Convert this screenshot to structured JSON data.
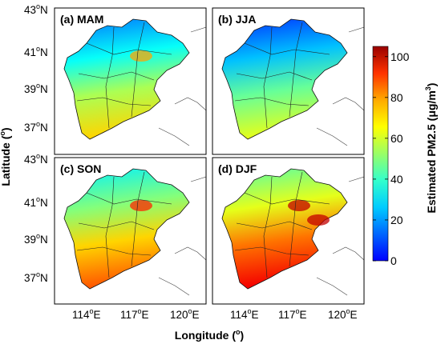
{
  "axes": {
    "x_label": "Longitude",
    "x_label_unit": "o",
    "y_label": "Latitude",
    "y_label_unit": "o",
    "x_ticks": [
      {
        "value": "114",
        "deg": "o",
        "hemi": "E"
      },
      {
        "value": "117",
        "deg": "o",
        "hemi": "E"
      },
      {
        "value": "120",
        "deg": "o",
        "hemi": "E"
      }
    ],
    "y_ticks": [
      {
        "value": "43",
        "deg": "o",
        "hemi": "N"
      },
      {
        "value": "41",
        "deg": "o",
        "hemi": "N"
      },
      {
        "value": "39",
        "deg": "o",
        "hemi": "N"
      },
      {
        "value": "37",
        "deg": "o",
        "hemi": "N"
      }
    ]
  },
  "panels": [
    {
      "label": "(a) MAM",
      "season": "MAM",
      "mean_level": 45,
      "high_spots": 1
    },
    {
      "label": "(b) JJA",
      "season": "JJA",
      "mean_level": 38,
      "high_spots": 0
    },
    {
      "label": "(c) SON",
      "season": "SON",
      "mean_level": 58,
      "high_spots": 1
    },
    {
      "label": "(d) DJF",
      "season": "DJF",
      "mean_level": 68,
      "high_spots": 2
    }
  ],
  "colorbar": {
    "title": "Estimated PM2.5 (μg/m",
    "title_sup": "3",
    "title_end": ")",
    "min": 0,
    "max": 105,
    "ticks": [
      "100",
      "80",
      "60",
      "40",
      "20",
      "0"
    ],
    "colormap": "jet"
  }
}
